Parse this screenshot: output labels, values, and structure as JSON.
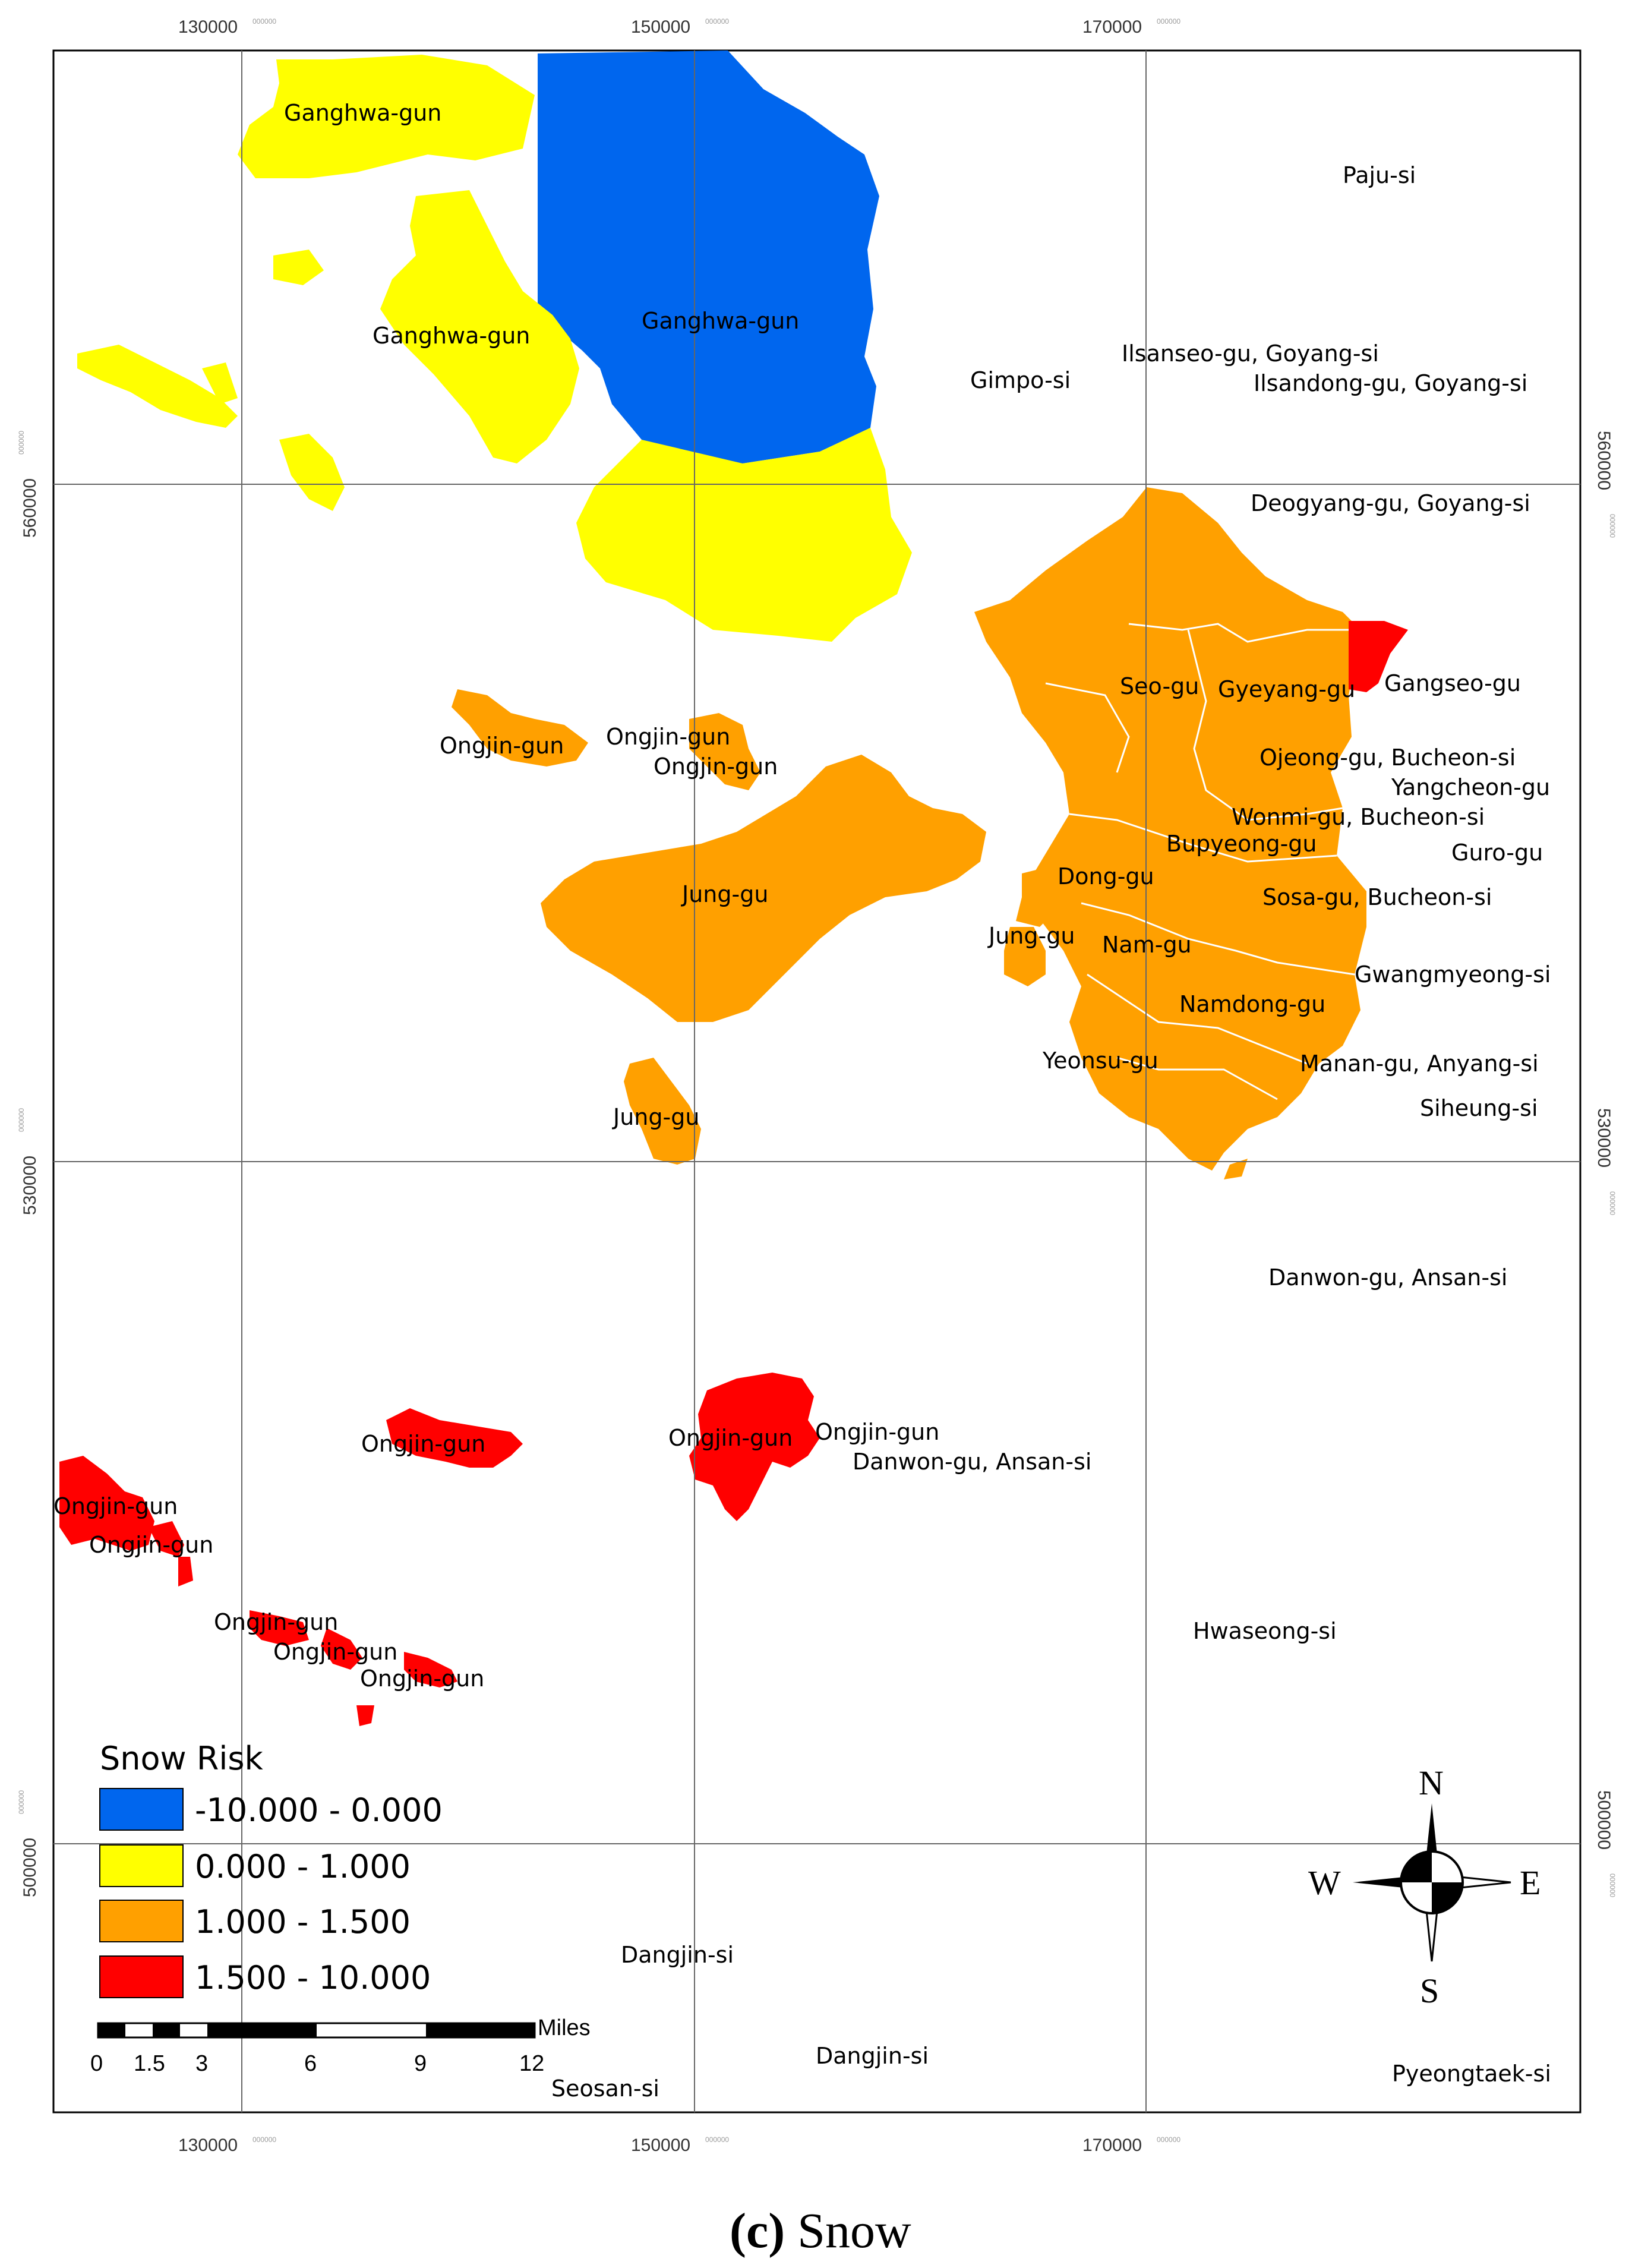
{
  "legend": {
    "title": "Snow Risk",
    "classes": [
      {
        "label": "-10.000 - 0.000",
        "color": "#0066ee"
      },
      {
        "label": "0.000 - 1.000",
        "color": "#ffff00"
      },
      {
        "label": "1.000 - 1.500",
        "color": "#ffa000"
      },
      {
        "label": "1.500 - 10.000",
        "color": "#ff0000"
      }
    ]
  },
  "axes": {
    "top": [
      "130000",
      "150000",
      "170000"
    ],
    "bottom": [
      "130000",
      "150000",
      "170000"
    ],
    "left": [
      "560000",
      "530000",
      "500000"
    ],
    "right": [
      "560000",
      "530000",
      "500000"
    ],
    "suffix": "000000"
  },
  "places": [
    "Ganghwa-gun",
    "Ganghwa-gun",
    "Ganghwa-gun",
    "Paju-si",
    "Gimpo-si",
    "Ilsanseo-gu, Goyang-si",
    "Ilsandong-gu, Goyang-si",
    "Deogyang-gu, Goyang-si",
    "Gangseo-gu",
    "Seo-gu",
    "Gyeyang-gu",
    "Ojeong-gu, Bucheon-si",
    "Yangcheon-gu",
    "Wonmi-gu, Bucheon-si",
    "Bupyeong-gu",
    "Guro-gu",
    "Dong-gu",
    "Sosa-gu, Bucheon-si",
    "Jung-gu",
    "Nam-gu",
    "Gwangmyeong-si",
    "Namdong-gu",
    "Yeonsu-gu",
    "Manan-gu, Anyang-si",
    "Siheung-si",
    "Jung-gu",
    "Jung-gu",
    "Ongjin-gun",
    "Ongjin-gun",
    "Ongjin-gun",
    "Danwon-gu, Ansan-si",
    "Ongjin-gun",
    "Ongjin-gun",
    "Ongjin-gun",
    "Danwon-gu, Ansan-si",
    "Ongjin-gun",
    "Ongjin-gun",
    "Ongjin-gun",
    "Ongjin-gun",
    "Ongjin-gun",
    "Hwaseong-si",
    "Dangjin-si",
    "Dangjin-si",
    "Seosan-si",
    "Pyeongtaek-si"
  ],
  "scale": {
    "ticks": [
      "0",
      "1.5",
      "3",
      "6",
      "9",
      "12"
    ],
    "unit": "Miles"
  },
  "compass": {
    "n": "N",
    "s": "S",
    "e": "E",
    "w": "W"
  },
  "caption": {
    "letter": "(c)",
    "text": " Snow"
  }
}
